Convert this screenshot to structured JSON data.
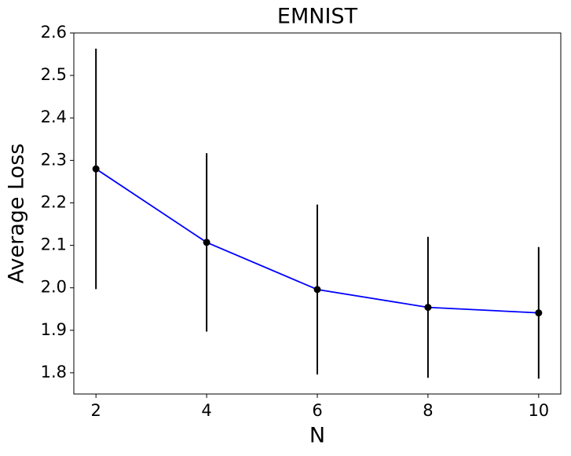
{
  "chart_data": {
    "type": "line",
    "title": "EMNIST",
    "xlabel": "N",
    "ylabel": "Average Loss",
    "x": [
      2,
      4,
      6,
      8,
      10
    ],
    "values": [
      2.28,
      2.107,
      1.996,
      1.954,
      1.941
    ],
    "errors": [
      0.283,
      0.21,
      0.2,
      0.166,
      0.155
    ],
    "color": "#0000ff",
    "marker_color": "#000000",
    "xlim": [
      1.6,
      10.4
    ],
    "xticks": [
      2,
      4,
      6,
      8,
      10
    ],
    "ylim": [
      1.75,
      2.6
    ],
    "yticks": [
      {
        "value": 1.8,
        "label": "1.8"
      },
      {
        "value": 1.9,
        "label": "1.9"
      },
      {
        "value": 2.0,
        "label": "2.0"
      },
      {
        "value": 2.1,
        "label": "2.1"
      },
      {
        "value": 2.2,
        "label": "2.2"
      },
      {
        "value": 2.3,
        "label": "2.3"
      },
      {
        "value": 2.4,
        "label": "2.4"
      },
      {
        "value": 2.5,
        "label": "2.5"
      },
      {
        "value": 2.6,
        "label": "2.6"
      }
    ]
  }
}
